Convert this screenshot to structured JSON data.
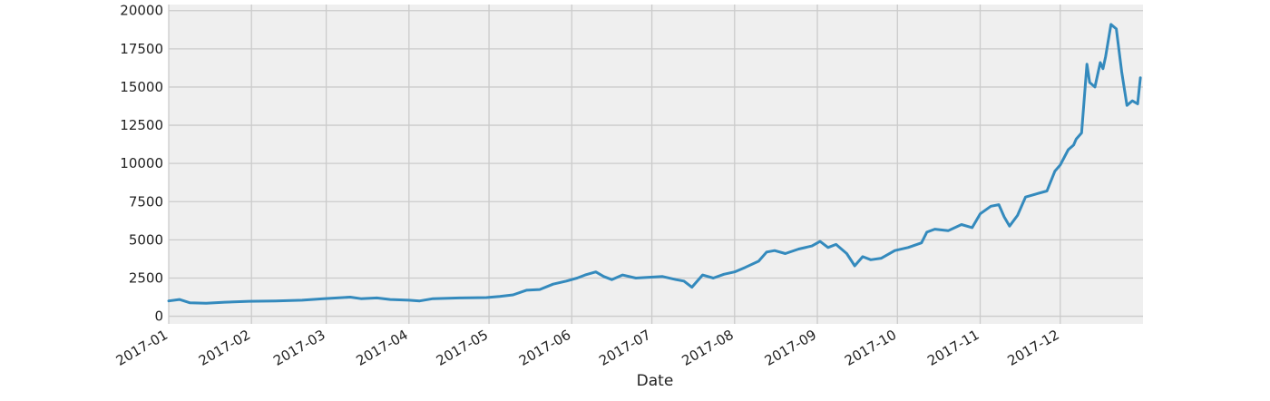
{
  "chart_data": {
    "type": "line",
    "title": "",
    "xlabel": "Date",
    "ylabel": "",
    "x_range": [
      "2017-01-01",
      "2017-12-31"
    ],
    "ylim": [
      -500,
      20400
    ],
    "grid": true,
    "legend": "none",
    "x_ticks": [
      "2017-01",
      "2017-02",
      "2017-03",
      "2017-04",
      "2017-05",
      "2017-06",
      "2017-07",
      "2017-08",
      "2017-09",
      "2017-10",
      "2017-11",
      "2017-12"
    ],
    "y_ticks": [
      0,
      2500,
      5000,
      7500,
      10000,
      12500,
      15000,
      17500,
      20000
    ],
    "series": [
      {
        "color": "#348ABD",
        "x": [
          "2017-01-01",
          "2017-01-05",
          "2017-01-09",
          "2017-01-15",
          "2017-01-22",
          "2017-01-31",
          "2017-02-10",
          "2017-02-20",
          "2017-02-28",
          "2017-03-05",
          "2017-03-10",
          "2017-03-14",
          "2017-03-20",
          "2017-03-25",
          "2017-04-01",
          "2017-04-05",
          "2017-04-10",
          "2017-04-20",
          "2017-04-30",
          "2017-05-05",
          "2017-05-10",
          "2017-05-15",
          "2017-05-20",
          "2017-05-25",
          "2017-05-30",
          "2017-06-03",
          "2017-06-06",
          "2017-06-10",
          "2017-06-13",
          "2017-06-16",
          "2017-06-20",
          "2017-06-25",
          "2017-06-30",
          "2017-07-05",
          "2017-07-10",
          "2017-07-13",
          "2017-07-16",
          "2017-07-20",
          "2017-07-24",
          "2017-07-28",
          "2017-08-01",
          "2017-08-05",
          "2017-08-10",
          "2017-08-13",
          "2017-08-16",
          "2017-08-20",
          "2017-08-25",
          "2017-08-30",
          "2017-09-02",
          "2017-09-05",
          "2017-09-08",
          "2017-09-12",
          "2017-09-15",
          "2017-09-18",
          "2017-09-21",
          "2017-09-25",
          "2017-09-30",
          "2017-10-05",
          "2017-10-10",
          "2017-10-12",
          "2017-10-15",
          "2017-10-20",
          "2017-10-25",
          "2017-10-29",
          "2017-11-01",
          "2017-11-05",
          "2017-11-08",
          "2017-11-10",
          "2017-11-12",
          "2017-11-15",
          "2017-11-18",
          "2017-11-22",
          "2017-11-26",
          "2017-11-29",
          "2017-12-01",
          "2017-12-04",
          "2017-12-06",
          "2017-12-07",
          "2017-12-09",
          "2017-12-11",
          "2017-12-12",
          "2017-12-14",
          "2017-12-16",
          "2017-12-17",
          "2017-12-18",
          "2017-12-20",
          "2017-12-22",
          "2017-12-24",
          "2017-12-26",
          "2017-12-28",
          "2017-12-30",
          "2017-12-31"
        ],
        "y": [
          1000,
          1100,
          880,
          850,
          920,
          980,
          1000,
          1050,
          1150,
          1200,
          1250,
          1150,
          1200,
          1100,
          1050,
          1000,
          1150,
          1200,
          1220,
          1300,
          1400,
          1700,
          1750,
          2100,
          2300,
          2500,
          2700,
          2900,
          2600,
          2400,
          2700,
          2500,
          2550,
          2600,
          2400,
          2300,
          1900,
          2700,
          2500,
          2750,
          2900,
          3200,
          3600,
          4200,
          4300,
          4100,
          4400,
          4600,
          4900,
          4500,
          4700,
          4100,
          3300,
          3900,
          3700,
          3800,
          4300,
          4500,
          4800,
          5500,
          5700,
          5600,
          6000,
          5800,
          6700,
          7200,
          7300,
          6500,
          5900,
          6600,
          7800,
          8000,
          8200,
          9500,
          9900,
          10900,
          11200,
          11600,
          12000,
          16500,
          15300,
          15000,
          16600,
          16200,
          17000,
          19100,
          18800,
          16000,
          13800,
          14100,
          13900,
          15600
        ]
      }
    ]
  }
}
